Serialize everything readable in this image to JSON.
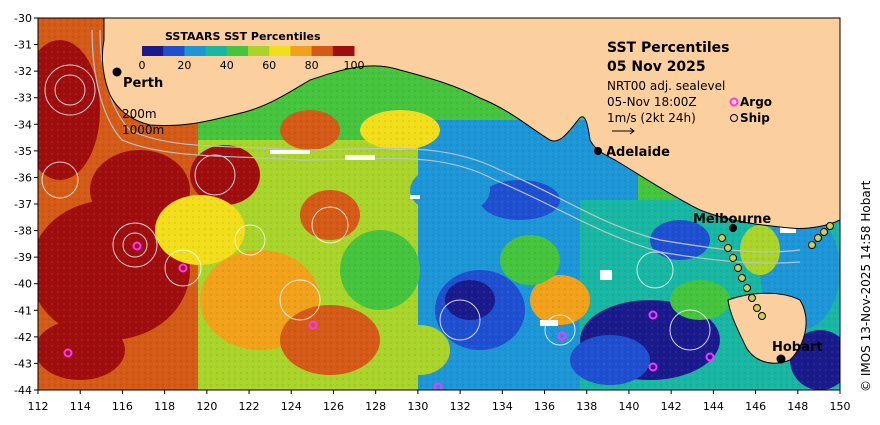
{
  "title": {
    "line1": "SST Percentiles",
    "line2": "05 Nov 2025",
    "line3": "NRT00 adj. sealevel",
    "line4": "05-Nov 18:00Z",
    "line5": "1m/s (2kt 24h)",
    "argo_label": "Argo",
    "ship_label": "Ship"
  },
  "colorbar": {
    "title": "SSTAARS SST Percentiles",
    "ticks": [
      "0",
      "20",
      "40",
      "60",
      "80",
      "100"
    ],
    "colors": [
      "#1a1a8c",
      "#1f4fd1",
      "#1d96d8",
      "#17b7a3",
      "#45c43e",
      "#a9d42a",
      "#f2de1a",
      "#f2a21a",
      "#d55a16",
      "#a00d0d"
    ]
  },
  "isobaths": [
    "200m",
    "1000m"
  ],
  "cities": [
    "Perth",
    "Adelaide",
    "Melbourne",
    "Hobart"
  ],
  "x_ticks": [
    "112",
    "114",
    "116",
    "118",
    "120",
    "122",
    "124",
    "126",
    "128",
    "130",
    "132",
    "134",
    "136",
    "138",
    "140",
    "142",
    "144",
    "146",
    "148",
    "150"
  ],
  "y_ticks": [
    "-30",
    "-31",
    "-32",
    "-33",
    "-34",
    "-35",
    "-36",
    "-37",
    "-38",
    "-39",
    "-40",
    "-41",
    "-42",
    "-43",
    "-44"
  ],
  "credit": "© IMOS 13-Nov-2025 14:58 Hobart",
  "colors": {
    "land": "#fccf9f",
    "argo": "#ff33ff",
    "coast": "#000000"
  }
}
